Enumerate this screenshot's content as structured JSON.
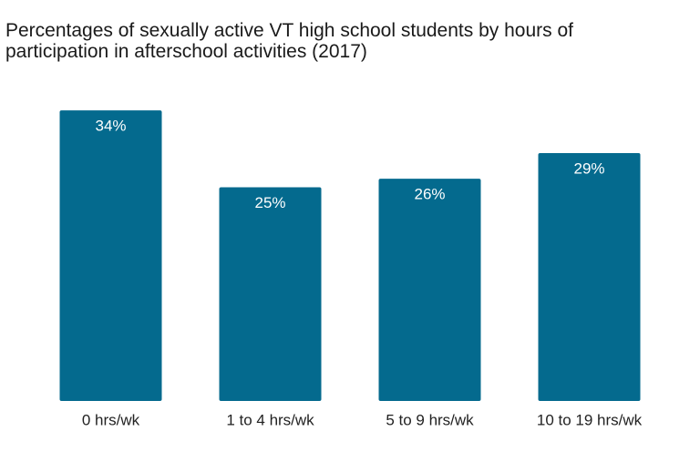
{
  "chart_data": {
    "type": "bar",
    "title": "Percentages of sexually active VT high school students by hours of participation in afterschool activities (2017)",
    "categories": [
      "0 hrs/wk",
      "1 to 4 hrs/wk",
      "5 to 9 hrs/wk",
      "10 to 19 hrs/wk"
    ],
    "values": [
      34,
      25,
      26,
      29
    ],
    "value_labels": [
      "34%",
      "25%",
      "26%",
      "29%"
    ],
    "color": "#046a8e"
  }
}
